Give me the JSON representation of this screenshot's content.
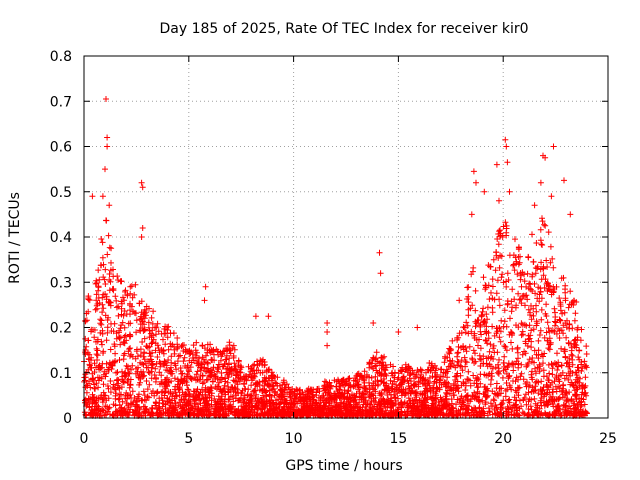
{
  "chart_data": {
    "type": "scatter",
    "title": "Day 185 of 2025, Rate Of TEC Index for receiver kir0",
    "xlabel": "GPS time / hours",
    "ylabel": "ROTI / TECUs",
    "xlim": [
      0,
      25
    ],
    "ylim": [
      0,
      0.8
    ],
    "xticks": [
      0,
      5,
      10,
      15,
      20,
      25
    ],
    "yticks": [
      0,
      0.1,
      0.2,
      0.3,
      0.4,
      0.5,
      0.6,
      0.7,
      0.8
    ],
    "xtick_labels": [
      "0",
      "5",
      "10",
      "15",
      "20",
      "25"
    ],
    "ytick_labels": [
      "0",
      "0.1",
      "0.2",
      "0.3",
      "0.4",
      "0.5",
      "0.6",
      "0.7",
      "0.8"
    ],
    "grid": true,
    "marker": "+",
    "color": "#ff0000",
    "envelope": [
      {
        "x": 0.0,
        "y": 0.3
      },
      {
        "x": 0.5,
        "y": 0.28
      },
      {
        "x": 1.0,
        "y": 0.45
      },
      {
        "x": 1.5,
        "y": 0.33
      },
      {
        "x": 2.0,
        "y": 0.3
      },
      {
        "x": 2.5,
        "y": 0.3
      },
      {
        "x": 3.0,
        "y": 0.25
      },
      {
        "x": 3.5,
        "y": 0.22
      },
      {
        "x": 4.0,
        "y": 0.2
      },
      {
        "x": 4.5,
        "y": 0.17
      },
      {
        "x": 5.0,
        "y": 0.15
      },
      {
        "x": 5.5,
        "y": 0.17
      },
      {
        "x": 6.0,
        "y": 0.16
      },
      {
        "x": 6.5,
        "y": 0.14
      },
      {
        "x": 7.0,
        "y": 0.17
      },
      {
        "x": 7.5,
        "y": 0.12
      },
      {
        "x": 8.0,
        "y": 0.11
      },
      {
        "x": 8.5,
        "y": 0.13
      },
      {
        "x": 9.0,
        "y": 0.1
      },
      {
        "x": 9.5,
        "y": 0.08
      },
      {
        "x": 10.0,
        "y": 0.06
      },
      {
        "x": 10.5,
        "y": 0.06
      },
      {
        "x": 11.0,
        "y": 0.06
      },
      {
        "x": 11.5,
        "y": 0.08
      },
      {
        "x": 12.0,
        "y": 0.08
      },
      {
        "x": 12.5,
        "y": 0.08
      },
      {
        "x": 13.0,
        "y": 0.09
      },
      {
        "x": 13.5,
        "y": 0.11
      },
      {
        "x": 14.0,
        "y": 0.15
      },
      {
        "x": 14.5,
        "y": 0.12
      },
      {
        "x": 15.0,
        "y": 0.1
      },
      {
        "x": 15.5,
        "y": 0.12
      },
      {
        "x": 16.0,
        "y": 0.1
      },
      {
        "x": 16.5,
        "y": 0.12
      },
      {
        "x": 17.0,
        "y": 0.11
      },
      {
        "x": 17.5,
        "y": 0.16
      },
      {
        "x": 18.0,
        "y": 0.2
      },
      {
        "x": 18.5,
        "y": 0.35
      },
      {
        "x": 19.0,
        "y": 0.3
      },
      {
        "x": 19.5,
        "y": 0.36
      },
      {
        "x": 20.0,
        "y": 0.45
      },
      {
        "x": 20.5,
        "y": 0.4
      },
      {
        "x": 21.0,
        "y": 0.35
      },
      {
        "x": 21.5,
        "y": 0.42
      },
      {
        "x": 22.0,
        "y": 0.45
      },
      {
        "x": 22.5,
        "y": 0.35
      },
      {
        "x": 23.0,
        "y": 0.3
      },
      {
        "x": 23.5,
        "y": 0.25
      },
      {
        "x": 24.0,
        "y": 0.15
      }
    ],
    "outliers": [
      {
        "x": 0.4,
        "y": 0.49
      },
      {
        "x": 1.05,
        "y": 0.705
      },
      {
        "x": 1.1,
        "y": 0.62
      },
      {
        "x": 1.1,
        "y": 0.6
      },
      {
        "x": 1.0,
        "y": 0.55
      },
      {
        "x": 0.9,
        "y": 0.49
      },
      {
        "x": 1.2,
        "y": 0.47
      },
      {
        "x": 2.75,
        "y": 0.52
      },
      {
        "x": 2.8,
        "y": 0.51
      },
      {
        "x": 2.8,
        "y": 0.42
      },
      {
        "x": 2.75,
        "y": 0.4
      },
      {
        "x": 5.8,
        "y": 0.29
      },
      {
        "x": 5.75,
        "y": 0.26
      },
      {
        "x": 8.2,
        "y": 0.225
      },
      {
        "x": 8.8,
        "y": 0.225
      },
      {
        "x": 11.6,
        "y": 0.21
      },
      {
        "x": 11.6,
        "y": 0.19
      },
      {
        "x": 11.6,
        "y": 0.16
      },
      {
        "x": 13.8,
        "y": 0.21
      },
      {
        "x": 14.1,
        "y": 0.365
      },
      {
        "x": 14.15,
        "y": 0.32
      },
      {
        "x": 15.0,
        "y": 0.19
      },
      {
        "x": 15.9,
        "y": 0.2
      },
      {
        "x": 17.9,
        "y": 0.26
      },
      {
        "x": 18.6,
        "y": 0.545
      },
      {
        "x": 18.7,
        "y": 0.52
      },
      {
        "x": 19.1,
        "y": 0.5
      },
      {
        "x": 19.7,
        "y": 0.56
      },
      {
        "x": 20.1,
        "y": 0.615
      },
      {
        "x": 20.15,
        "y": 0.6
      },
      {
        "x": 20.2,
        "y": 0.565
      },
      {
        "x": 20.3,
        "y": 0.5
      },
      {
        "x": 21.9,
        "y": 0.58
      },
      {
        "x": 22.0,
        "y": 0.575
      },
      {
        "x": 22.4,
        "y": 0.6
      },
      {
        "x": 21.8,
        "y": 0.52
      },
      {
        "x": 22.3,
        "y": 0.49
      },
      {
        "x": 22.9,
        "y": 0.525
      },
      {
        "x": 23.2,
        "y": 0.45
      },
      {
        "x": 18.5,
        "y": 0.45
      },
      {
        "x": 19.8,
        "y": 0.48
      },
      {
        "x": 21.5,
        "y": 0.47
      }
    ]
  }
}
